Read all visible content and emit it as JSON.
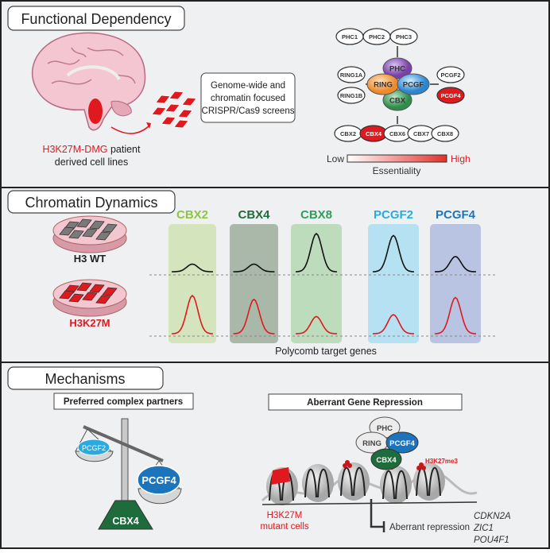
{
  "panels": {
    "functional": {
      "title": "Functional Dependency",
      "patient_label_red": "H3K27M-DMG",
      "patient_label_rest": " patient",
      "patient_label_2": "derived cell lines",
      "screen_lines": [
        "Genome-wide and",
        "chromatin focused",
        "CRISPR/Cas9 screens"
      ],
      "complex_core": {
        "phc": "PHC",
        "ring": "RING",
        "pcgf": "PCGF",
        "cbx": "CBX"
      },
      "phc_members": [
        "PHC1",
        "PHC2",
        "PHC3"
      ],
      "ring_members": [
        "RING1A",
        "RING1B"
      ],
      "pcgf_members": [
        "PCGF2",
        "PCGF4"
      ],
      "cbx_members": [
        "CBX2",
        "CBX4",
        "CBX6",
        "CBX7",
        "CBX8"
      ],
      "highlighted": [
        "PCGF4",
        "CBX4"
      ],
      "legend": {
        "low": "Low",
        "high": "High",
        "label": "Essentiality"
      }
    },
    "chromatin": {
      "title": "Chromatin Dynamics",
      "wt_label": "H3 WT",
      "mut_label": "H3K27M",
      "columns": [
        {
          "name": "CBX2",
          "color": "#8dc63f",
          "wt_peak": 0.2,
          "mut_peak": 1.0
        },
        {
          "name": "CBX4",
          "color": "#1e6b3b",
          "wt_peak": 0.2,
          "mut_peak": 0.9
        },
        {
          "name": "CBX8",
          "color": "#2e9e5b",
          "wt_peak": 1.0,
          "mut_peak": 0.45
        },
        {
          "name": "PCGF2",
          "color": "#29abe2",
          "wt_peak": 0.95,
          "mut_peak": 0.5
        },
        {
          "name": "PCGF4",
          "color": "#1c75bc",
          "wt_peak": 0.4,
          "mut_peak": 0.95
        }
      ],
      "xlabel": "Polycomb target genes"
    },
    "mechanisms": {
      "title": "Mechanisms",
      "partners_title": "Preferred complex partners",
      "scale": {
        "light": "PCGF2",
        "heavy": "PCGF4",
        "base": "CBX4"
      },
      "repression_title": "Aberrant Gene Repression",
      "complex": {
        "phc": "PHC",
        "ring": "RING",
        "pcgf": "PCGF4",
        "cbx": "CBX4"
      },
      "mark": "H3K27me3",
      "mutant_1": "H3K27M",
      "mutant_2": "mutant cells",
      "repression": "Aberrant repression",
      "genes": [
        "CDKN2A",
        "ZIC1",
        "POU4F1"
      ]
    }
  }
}
